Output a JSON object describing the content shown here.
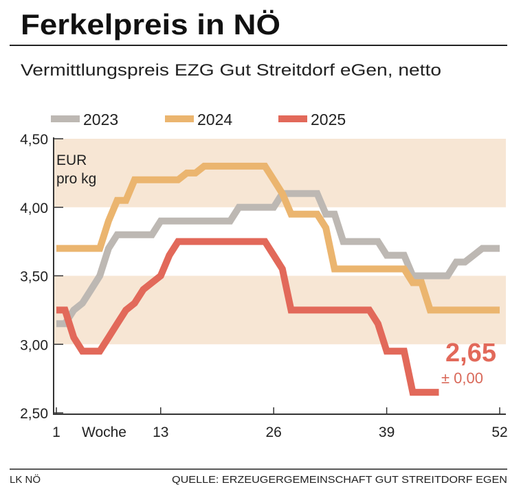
{
  "title": "Ferkelpreis in NÖ",
  "subtitle": "Vermittlungspreis EZG Gut Streitdorf eGen, netto",
  "footer": {
    "left": "LK NÖ",
    "right": "QUELLE: ERZEUGERGEMEINSCHAFT GUT STREITDORF EGEN"
  },
  "chart_data": {
    "type": "line",
    "unit_label": [
      "EUR",
      "pro kg"
    ],
    "xlabel": "Woche",
    "xlim": [
      1,
      52
    ],
    "x_ticks": [
      1,
      13,
      26,
      39,
      52
    ],
    "ylim": [
      2.5,
      4.5
    ],
    "y_ticks": [
      2.5,
      3.0,
      3.5,
      4.0,
      4.5
    ],
    "y_tick_labels": [
      "2,50",
      "3,00",
      "3,50",
      "4,00",
      "4,50"
    ],
    "shaded_bands": [
      [
        3.0,
        3.5
      ],
      [
        4.0,
        4.5
      ]
    ],
    "legend_position": "top",
    "series": [
      {
        "name": "2023",
        "color": "#bdb8b3",
        "start_week": 1,
        "values": [
          3.15,
          3.15,
          3.25,
          3.3,
          3.4,
          3.5,
          3.7,
          3.8,
          3.8,
          3.8,
          3.8,
          3.8,
          3.9,
          3.9,
          3.9,
          3.9,
          3.9,
          3.9,
          3.9,
          3.9,
          3.9,
          4.0,
          4.0,
          4.0,
          4.0,
          4.0,
          4.1,
          4.1,
          4.1,
          4.1,
          4.1,
          3.95,
          3.95,
          3.75,
          3.75,
          3.75,
          3.75,
          3.75,
          3.65,
          3.65,
          3.65,
          3.5,
          3.5,
          3.5,
          3.5,
          3.5,
          3.6,
          3.6,
          3.65,
          3.7,
          3.7,
          3.7
        ]
      },
      {
        "name": "2024",
        "color": "#ebb56f",
        "start_week": 1,
        "values": [
          3.7,
          3.7,
          3.7,
          3.7,
          3.7,
          3.7,
          3.9,
          4.05,
          4.05,
          4.2,
          4.2,
          4.2,
          4.2,
          4.2,
          4.2,
          4.25,
          4.25,
          4.3,
          4.3,
          4.3,
          4.3,
          4.3,
          4.3,
          4.3,
          4.3,
          4.2,
          4.1,
          3.95,
          3.95,
          3.95,
          3.95,
          3.85,
          3.55,
          3.55,
          3.55,
          3.55,
          3.55,
          3.55,
          3.55,
          3.55,
          3.55,
          3.45,
          3.45,
          3.25,
          3.25,
          3.25,
          3.25,
          3.25,
          3.25,
          3.25,
          3.25,
          3.25
        ]
      },
      {
        "name": "2025",
        "color": "#e2695a",
        "start_week": 1,
        "values": [
          3.25,
          3.25,
          3.05,
          2.95,
          2.95,
          2.95,
          3.05,
          3.15,
          3.25,
          3.3,
          3.4,
          3.45,
          3.5,
          3.65,
          3.75,
          3.75,
          3.75,
          3.75,
          3.75,
          3.75,
          3.75,
          3.75,
          3.75,
          3.75,
          3.75,
          3.65,
          3.55,
          3.25,
          3.25,
          3.25,
          3.25,
          3.25,
          3.25,
          3.25,
          3.25,
          3.25,
          3.25,
          3.15,
          2.95,
          2.95,
          2.95,
          2.65,
          2.65,
          2.65,
          2.65
        ]
      }
    ],
    "annotation": {
      "value": "2,65",
      "change": "± 0,00",
      "color": "#e2695a"
    }
  }
}
